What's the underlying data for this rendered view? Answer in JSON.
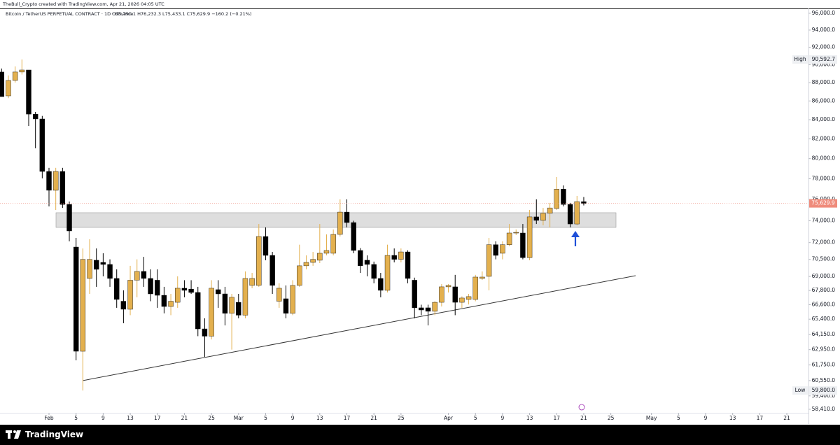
{
  "attribution": "TheBull_Crypto created with TradingView.com, Apr 21, 2026 04:05 UTC",
  "brand": "TradingView",
  "chart_data": {
    "type": "candlestick",
    "title": "Bitcoin / TetherUS PERPETUAL CONTRACT · 1D · Binance",
    "legend_values": "O75,790.1 H76,232.3 L75,433.1 C75,629.9 −160.2 (−0.21%)",
    "log_scale": true,
    "grid": false,
    "up_color": "#e3b04e",
    "down_color": "#000000",
    "x": [
      -7,
      -6,
      -5,
      -4,
      -3,
      -2,
      -1,
      0,
      1,
      2,
      3,
      4,
      5,
      6,
      7,
      8,
      9,
      10,
      11,
      12,
      13,
      14,
      15,
      16,
      17,
      18,
      19,
      20,
      21,
      22,
      23,
      24,
      25,
      26,
      27,
      28,
      29,
      30,
      31,
      32,
      33,
      34,
      35,
      36,
      37,
      38,
      39,
      40,
      41,
      42,
      43,
      44,
      45,
      46,
      47,
      48,
      49,
      50,
      51,
      52,
      53,
      54,
      55,
      56,
      57,
      58,
      59,
      60,
      61,
      62,
      63,
      64,
      65,
      66,
      67,
      68,
      69,
      70,
      71,
      72,
      73,
      74,
      75,
      76,
      77,
      78,
      79
    ],
    "open": [
      89180,
      86550,
      88240,
      89180,
      89410,
      84590,
      84080,
      78720,
      76880,
      78720,
      75530,
      71600,
      62820,
      68830,
      70420,
      70230,
      70050,
      68830,
      66890,
      66220,
      68680,
      69440,
      68830,
      68680,
      67390,
      66450,
      66800,
      67990,
      67920,
      67630,
      64610,
      64020,
      67870,
      67510,
      65880,
      66800,
      65730,
      68230,
      68230,
      72550,
      70850,
      66890,
      67100,
      65880,
      68230,
      69930,
      70230,
      70420,
      71040,
      71040,
      72740,
      74810,
      73830,
      71290,
      70420,
      70050,
      68830,
      67810,
      70850,
      70500,
      71160,
      68680,
      66340,
      66340,
      66050,
      66800,
      68110,
      68110,
      66800,
      67040,
      67040,
      68830,
      69010,
      71810,
      71040,
      71810,
      72870,
      72870,
      70650,
      74360,
      74030,
      74690,
      75140,
      76990,
      75530,
      73700,
      75790.1
    ],
    "high": [
      89570,
      88800,
      89810,
      90592.7,
      89410,
      84820,
      84400,
      79080,
      79080,
      79080,
      75800,
      72420,
      71470,
      72300,
      71470,
      71040,
      70500,
      69620,
      67810,
      69930,
      70500,
      70720,
      69620,
      69620,
      68110,
      67510,
      69010,
      68680,
      68680,
      68110,
      65470,
      68680,
      68680,
      68110,
      67510,
      67510,
      69440,
      69310,
      73700,
      73380,
      71160,
      68410,
      68230,
      68680,
      71810,
      70850,
      71160,
      73700,
      72740,
      73190,
      76010,
      76010,
      74000,
      71500,
      70850,
      70300,
      69310,
      71810,
      71470,
      71470,
      71300,
      68900,
      66600,
      66600,
      66890,
      68340,
      68340,
      69140,
      67300,
      67510,
      69140,
      69440,
      72420,
      72110,
      72110,
      73700,
      73190,
      73700,
      75010,
      76010,
      75200,
      75680,
      78170,
      77350,
      75680,
      76340,
      76232.3
    ],
    "low": [
      86470,
      86300,
      88010,
      88900,
      83340,
      81040,
      78040,
      75340,
      75010,
      75200,
      72110,
      62110,
      59800,
      67510,
      68110,
      69010,
      68110,
      66340,
      65070,
      65730,
      67220,
      68110,
      66890,
      66340,
      65880,
      65730,
      66340,
      67220,
      67510,
      64020,
      62380,
      63760,
      66340,
      64890,
      62950,
      65470,
      65470,
      67990,
      68110,
      70420,
      67510,
      66340,
      65470,
      65730,
      68110,
      69620,
      69930,
      70170,
      70850,
      70850,
      72550,
      73380,
      71040,
      69310,
      69010,
      68410,
      67220,
      67630,
      70230,
      70230,
      68410,
      65470,
      65730,
      64890,
      65730,
      66450,
      67630,
      65730,
      66340,
      66620,
      66890,
      68700,
      67810,
      70500,
      70500,
      71670,
      72680,
      70500,
      70420,
      73700,
      73570,
      73380,
      75010,
      75340,
      73380,
      73570,
      75433.1
    ],
    "close": [
      86470,
      88240,
      89180,
      89410,
      84590,
      84080,
      78720,
      76880,
      78720,
      75530,
      73060,
      62820,
      70500,
      70500,
      69620,
      70050,
      68830,
      67040,
      66220,
      68680,
      69440,
      68830,
      67510,
      67390,
      66450,
      66890,
      67990,
      67810,
      67630,
      64610,
      64020,
      67990,
      67510,
      65880,
      67220,
      65730,
      68830,
      68830,
      72550,
      70850,
      68230,
      67990,
      65880,
      68230,
      69930,
      70230,
      70500,
      71040,
      71290,
      72740,
      74810,
      73830,
      71290,
      69930,
      70050,
      68830,
      67810,
      70850,
      70500,
      71160,
      68830,
      66340,
      66160,
      66050,
      66800,
      68110,
      68230,
      66800,
      67160,
      67280,
      68950,
      68950,
      71810,
      70850,
      71810,
      72870,
      72930,
      70650,
      74360,
      74030,
      74690,
      75200,
      76990,
      75530,
      73700,
      75790.1,
      75629.9
    ],
    "xlim": [
      -7.24,
      112.2
    ],
    "ylim": [
      57340,
      96590
    ],
    "xticks": [
      {
        "value": 0,
        "label": "Feb"
      },
      {
        "value": 4,
        "label": "5"
      },
      {
        "value": 8,
        "label": "9"
      },
      {
        "value": 12,
        "label": "13"
      },
      {
        "value": 16,
        "label": "17"
      },
      {
        "value": 20,
        "label": "21"
      },
      {
        "value": 24,
        "label": "25"
      },
      {
        "value": 28,
        "label": "Mar"
      },
      {
        "value": 32,
        "label": "5"
      },
      {
        "value": 36,
        "label": "9"
      },
      {
        "value": 40,
        "label": "13"
      },
      {
        "value": 44,
        "label": "17"
      },
      {
        "value": 48,
        "label": "21"
      },
      {
        "value": 52,
        "label": "25"
      },
      {
        "value": 59,
        "label": "Apr"
      },
      {
        "value": 63,
        "label": "5"
      },
      {
        "value": 67,
        "label": "9"
      },
      {
        "value": 71,
        "label": "13"
      },
      {
        "value": 75,
        "label": "17"
      },
      {
        "value": 79,
        "label": "21"
      },
      {
        "value": 83,
        "label": "25"
      },
      {
        "value": 89,
        "label": "May"
      },
      {
        "value": 93,
        "label": "5"
      },
      {
        "value": 97,
        "label": "9"
      },
      {
        "value": 101,
        "label": "13"
      },
      {
        "value": 105,
        "label": "17"
      },
      {
        "value": 109,
        "label": "21"
      }
    ],
    "yticks": [
      {
        "value": 96000,
        "label": "96,000.0"
      },
      {
        "value": 94000,
        "label": "94,000.0"
      },
      {
        "value": 92000,
        "label": "92,000.0"
      },
      {
        "value": 90000,
        "label": "90,000.0"
      },
      {
        "value": 88000,
        "label": "88,000.0"
      },
      {
        "value": 86000,
        "label": "86,000.0"
      },
      {
        "value": 84000,
        "label": "84,000.0"
      },
      {
        "value": 82000,
        "label": "82,000.0"
      },
      {
        "value": 80000,
        "label": "80,000.0"
      },
      {
        "value": 78000,
        "label": "78,000.0"
      },
      {
        "value": 76000,
        "label": "76,000.0"
      },
      {
        "value": 74000,
        "label": "74,000.0"
      },
      {
        "value": 72000,
        "label": "72,000.0"
      },
      {
        "value": 70500,
        "label": "70,500.0"
      },
      {
        "value": 69000,
        "label": "69,000.0"
      },
      {
        "value": 67800,
        "label": "67,800.0"
      },
      {
        "value": 66600,
        "label": "66,600.0"
      },
      {
        "value": 65400,
        "label": "65,400.0"
      },
      {
        "value": 64150,
        "label": "64,150.0"
      },
      {
        "value": 62950,
        "label": "62,950.0"
      },
      {
        "value": 61750,
        "label": "61,750.0"
      },
      {
        "value": 60550,
        "label": "60,550.0"
      },
      {
        "value": 59400,
        "label": "59,400.0"
      },
      {
        "value": 58410,
        "label": "58,410.0"
      }
    ],
    "markers": [
      {
        "name": "High",
        "value": 90592.7,
        "value_label": "90,592.7"
      },
      {
        "name": "Low",
        "value": 59800,
        "value_label": "59,800.0"
      }
    ],
    "last_price": {
      "value": 75629.9,
      "label": "75,629.9",
      "color": "#ef8b7b"
    }
  }
}
